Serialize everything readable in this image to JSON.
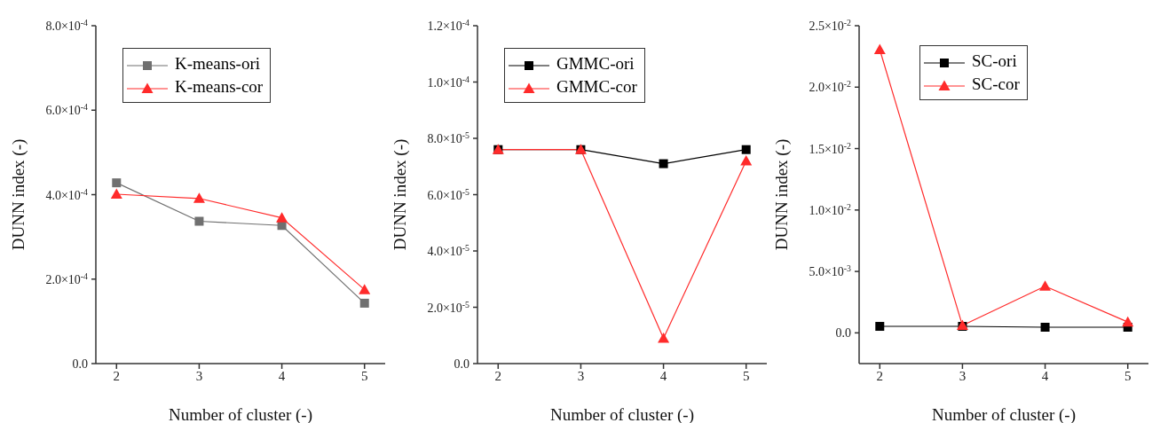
{
  "chart_data": [
    {
      "type": "line",
      "xlabel": "Number of cluster (-)",
      "ylabel": "DUNN index (-)",
      "x": [
        2,
        3,
        4,
        5
      ],
      "xlim": [
        1.75,
        5.25
      ],
      "xticks": [
        2,
        3,
        4,
        5
      ],
      "ylim": [
        0,
        0.0008
      ],
      "yticks": [
        {
          "value": 0,
          "label": "0.0"
        },
        {
          "value": 0.0002,
          "label": "2.0×10$^{-4}$"
        },
        {
          "value": 0.0004,
          "label": "4.0×10$^{-4}$"
        },
        {
          "value": 0.0006,
          "label": "6.0×10$^{-4}$"
        },
        {
          "value": 0.0008,
          "label": "8.0×10$^{-4}$"
        }
      ],
      "legend": "top left",
      "series": [
        {
          "name": "K-means-ori",
          "color": "#707070",
          "marker": "square",
          "values": [
            0.000428,
            0.000337,
            0.000327,
            0.000143
          ]
        },
        {
          "name": "K-means-cor",
          "color": "#ff2b2b",
          "marker": "triangle",
          "values": [
            0.000401,
            0.000391,
            0.000345,
            0.000175
          ]
        }
      ]
    },
    {
      "type": "line",
      "xlabel": "Number of cluster (-)",
      "ylabel": "DUNN index (-)",
      "x": [
        2,
        3,
        4,
        5
      ],
      "xlim": [
        1.75,
        5.25
      ],
      "xticks": [
        2,
        3,
        4,
        5
      ],
      "ylim": [
        0,
        0.00012
      ],
      "yticks": [
        {
          "value": 0,
          "label": "0.0"
        },
        {
          "value": 2e-05,
          "label": "2.0×10$^{-5}$"
        },
        {
          "value": 4e-05,
          "label": "4.0×10$^{-5}$"
        },
        {
          "value": 6e-05,
          "label": "6.0×10$^{-5}$"
        },
        {
          "value": 8e-05,
          "label": "8.0×10$^{-5}$"
        },
        {
          "value": 0.0001,
          "label": "1.0×10$^{-4}$"
        },
        {
          "value": 0.00012,
          "label": "1.2×10$^{-4}$"
        }
      ],
      "legend": "top left",
      "series": [
        {
          "name": "GMMC-ori",
          "color": "#000000",
          "marker": "square",
          "values": [
            7.6e-05,
            7.6e-05,
            7.1e-05,
            7.6e-05
          ]
        },
        {
          "name": "GMMC-cor",
          "color": "#ff2b2b",
          "marker": "triangle",
          "values": [
            7.6e-05,
            7.6e-05,
            9e-06,
            7.2e-05
          ]
        }
      ]
    },
    {
      "type": "line",
      "xlabel": "Number of cluster (-)",
      "ylabel": "DUNN index (-)",
      "x": [
        2,
        3,
        4,
        5
      ],
      "xlim": [
        1.75,
        5.25
      ],
      "xticks": [
        2,
        3,
        4,
        5
      ],
      "ylim": [
        -0.0025,
        0.025
      ],
      "yticks": [
        {
          "value": 0,
          "label": "0.0"
        },
        {
          "value": 0.005,
          "label": "5.0×10$^{-3}$"
        },
        {
          "value": 0.01,
          "label": "1.0×10$^{-2}$"
        },
        {
          "value": 0.015,
          "label": "1.5×10$^{-2}$"
        },
        {
          "value": 0.02,
          "label": "2.0×10$^{-2}$"
        },
        {
          "value": 0.025,
          "label": "2.5×10$^{-2}$"
        }
      ],
      "legend": "top",
      "series": [
        {
          "name": "SC-ori",
          "color": "#000000",
          "marker": "square",
          "values": [
            0.00053,
            0.00053,
            0.00046,
            0.00046
          ]
        },
        {
          "name": "SC-cor",
          "color": "#ff2b2b",
          "marker": "triangle",
          "values": [
            0.02305,
            0.0006,
            0.0038,
            0.00088
          ]
        }
      ]
    }
  ]
}
